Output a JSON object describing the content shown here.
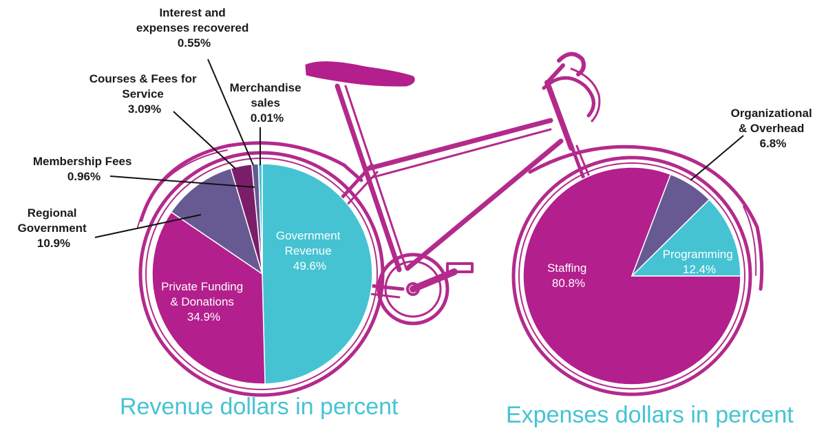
{
  "colors": {
    "magenta": "#B31F8D",
    "cyan": "#45C3D3",
    "slate": "#675A93",
    "dark_purple": "#7A1E6A",
    "bike_outline": "#B32A8C",
    "caption": "#45C3D3"
  },
  "chart_data": [
    {
      "type": "pie",
      "title": "Revenue dollars in percent",
      "slices": [
        {
          "label_lines": [
            "Government",
            "Revenue"
          ],
          "value": 49.6,
          "value_text": "49.6%",
          "color": "#45C3D3",
          "label_style": "inside"
        },
        {
          "label_lines": [
            "Private Funding",
            "& Donations"
          ],
          "value": 34.9,
          "value_text": "34.9%",
          "color": "#B31F8D",
          "label_style": "inside"
        },
        {
          "label_lines": [
            "Regional",
            "Government"
          ],
          "value": 10.9,
          "value_text": "10.9%",
          "color": "#675A93",
          "label_style": "callout"
        },
        {
          "label_lines": [
            "Courses & Fees for",
            "Service"
          ],
          "value": 3.09,
          "value_text": "3.09%",
          "color": "#7A1E6A",
          "label_style": "callout"
        },
        {
          "label_lines": [
            "Membership Fees"
          ],
          "value": 0.96,
          "value_text": "0.96%",
          "color": "#675A93",
          "label_style": "callout"
        },
        {
          "label_lines": [
            "Interest and",
            "expenses recovered"
          ],
          "value": 0.55,
          "value_text": "0.55%",
          "color": "#45C3D3",
          "label_style": "callout"
        },
        {
          "label_lines": [
            "Merchandise",
            "sales"
          ],
          "value": 0.01,
          "value_text": "0.01%",
          "color": "#B31F8D",
          "label_style": "callout"
        }
      ]
    },
    {
      "type": "pie",
      "title": "Expenses dollars in percent",
      "slices": [
        {
          "label_lines": [
            "Programming"
          ],
          "value": 12.4,
          "value_text": "12.4%",
          "color": "#45C3D3",
          "label_style": "inside"
        },
        {
          "label_lines": [
            "Organizational",
            "& Overhead"
          ],
          "value": 6.8,
          "value_text": "6.8%",
          "color": "#675A93",
          "label_style": "callout"
        },
        {
          "label_lines": [
            "Staffing"
          ],
          "value": 80.8,
          "value_text": "80.8%",
          "color": "#B31F8D",
          "label_style": "inside"
        }
      ]
    }
  ]
}
